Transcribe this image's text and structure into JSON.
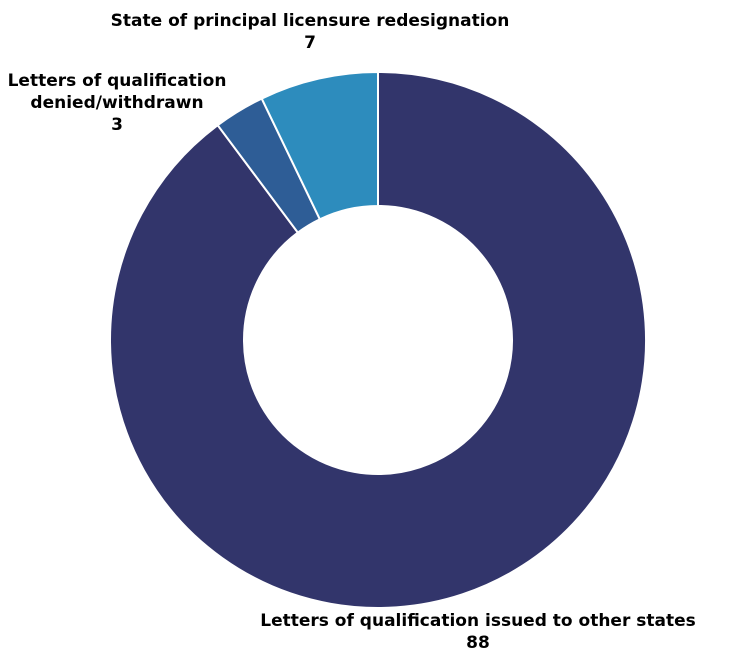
{
  "chart_data": {
    "type": "pie",
    "title": "",
    "slices": [
      {
        "label": "Letters of qualification issued to other states",
        "value": 88,
        "value_label": "88",
        "color": "#32356b"
      },
      {
        "label": "Letters of qualification denied/withdrawn",
        "label_lines": [
          "Letters of qualification",
          "denied/withdrawn"
        ],
        "value": 3,
        "value_label": "3",
        "color": "#2e5d96"
      },
      {
        "label": "State of principal licensure redesignation",
        "value": 7,
        "value_label": "7",
        "color": "#2d8cbd"
      }
    ]
  }
}
